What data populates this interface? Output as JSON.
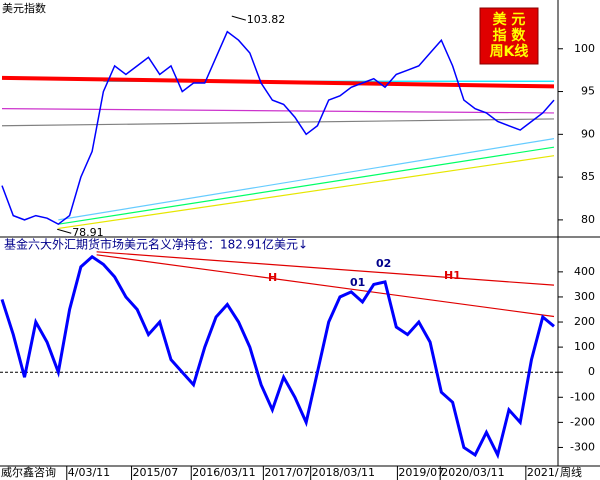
{
  "chart_data": [
    {
      "type": "line",
      "title": "美元指数",
      "badge": [
        "美 元",
        "指 数",
        "周K线"
      ],
      "ylim": [
        78,
        105.7
      ],
      "yticks": [
        80,
        85,
        90,
        95,
        100
      ],
      "xlim": [
        0,
        49
      ],
      "series": [
        {
          "color": "#0000ff",
          "x": [
            0,
            1,
            2,
            3,
            4,
            5,
            6,
            7,
            8,
            9,
            10,
            11,
            12,
            13,
            14,
            15,
            16,
            17,
            18,
            19,
            20,
            21,
            22,
            23,
            24,
            25,
            26,
            27,
            28,
            29,
            30,
            31,
            32,
            33,
            34,
            35,
            36,
            37,
            38,
            39,
            40,
            41,
            42,
            43,
            44,
            45,
            46,
            47,
            48,
            49
          ],
          "values": [
            84,
            80.5,
            80,
            80.5,
            80.2,
            79.5,
            80.5,
            85,
            88,
            95,
            98,
            97,
            98,
            99,
            97,
            98,
            95,
            96,
            96,
            99,
            102,
            101,
            99.5,
            96,
            94,
            93.5,
            92,
            90,
            91,
            94,
            94.5,
            95.5,
            96,
            96.5,
            95.5,
            97,
            97.5,
            98,
            99.5,
            101,
            98,
            94,
            93,
            92.5,
            91.5,
            91,
            90.5,
            91.5,
            92.5,
            94
          ]
        },
        {
          "color": "#ff0000",
          "x": [
            0,
            49
          ],
          "values": [
            96.6,
            95.6
          ]
        },
        {
          "color": "#00e5ff",
          "x": [
            9,
            49
          ],
          "values": [
            96.2,
            96.2
          ]
        },
        {
          "color": "#808080",
          "x": [
            0,
            49
          ],
          "values": [
            91,
            91.8
          ]
        },
        {
          "color": "#00ff66",
          "x": [
            5,
            49
          ],
          "values": [
            79.5,
            88.5
          ]
        },
        {
          "color": "#e6e600",
          "x": [
            5,
            49
          ],
          "values": [
            79,
            87.5
          ]
        },
        {
          "color": "#66ccff",
          "x": [
            5,
            49
          ],
          "values": [
            80,
            89.5
          ]
        },
        {
          "color": "#cc33cc",
          "x": [
            0,
            49
          ],
          "values": [
            93,
            92.5
          ]
        }
      ],
      "annotations": [
        {
          "x": 20.4,
          "value": 103.82,
          "label": "103.82"
        },
        {
          "x": 4.9,
          "value": 78.91,
          "label": "78.91"
        }
      ]
    },
    {
      "type": "line",
      "title": "基金六大外汇期货市场美元名义净持仓：182.91亿美元↓",
      "ylim": [
        -370,
        535
      ],
      "yticks": [
        -300,
        -200,
        -100,
        0,
        100,
        200,
        300,
        400
      ],
      "xlim": [
        0,
        49
      ],
      "xticks": [
        {
          "value": 5.75,
          "label": "4/03/11"
        },
        {
          "value": 11.5,
          "label": "2015/07"
        },
        {
          "value": 16.8,
          "label": "2016/03/11"
        },
        {
          "value": 23.2,
          "label": "2017/07"
        },
        {
          "value": 27.4,
          "label": "2018/03/11"
        },
        {
          "value": 35.1,
          "label": "2019/07"
        },
        {
          "value": 38.9,
          "label": "2020/03/11"
        },
        {
          "value": 46.5,
          "label": "2021/"
        }
      ],
      "source": "威尔鑫咨询",
      "period": "周线",
      "labels": [
        "H",
        "H1",
        "01",
        "02"
      ],
      "series": [
        {
          "color": "#0000ff",
          "x": [
            0,
            1,
            2,
            3,
            4,
            5,
            6,
            7,
            8,
            9,
            10,
            11,
            12,
            13,
            14,
            15,
            16,
            17,
            18,
            19,
            20,
            21,
            22,
            23,
            24,
            25,
            26,
            27,
            28,
            29,
            30,
            31,
            32,
            33,
            34,
            35,
            36,
            37,
            38,
            39,
            40,
            41,
            42,
            43,
            44,
            45,
            46,
            47,
            48,
            49
          ],
          "values": [
            290,
            150,
            -20,
            200,
            120,
            0,
            250,
            420,
            460,
            430,
            380,
            300,
            250,
            150,
            200,
            50,
            0,
            -50,
            100,
            220,
            270,
            200,
            100,
            -50,
            -150,
            -20,
            -100,
            -200,
            0,
            200,
            300,
            320,
            280,
            350,
            360,
            180,
            150,
            200,
            120,
            -80,
            -120,
            -300,
            -330,
            -240,
            -330,
            -150,
            -200,
            50,
            220,
            183
          ]
        },
        {
          "color": "#e00000",
          "x": [
            8.4,
            49
          ],
          "values": [
            480,
            347
          ]
        },
        {
          "color": "#e00000",
          "x": [
            8.4,
            49
          ],
          "values": [
            468,
            222
          ]
        }
      ]
    }
  ]
}
